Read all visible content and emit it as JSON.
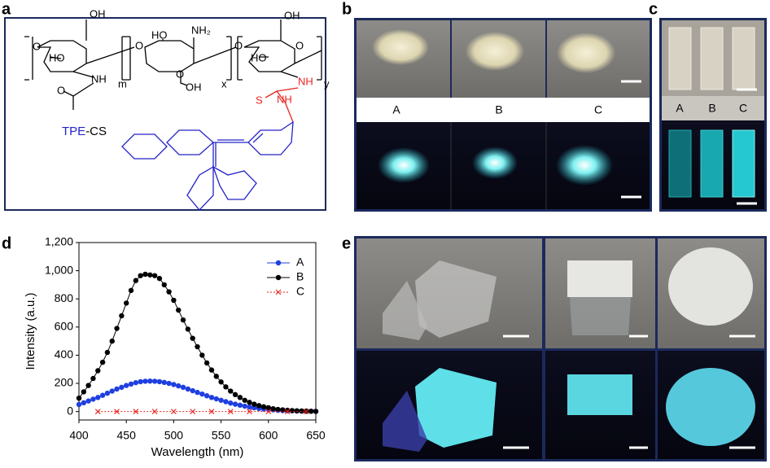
{
  "panel_labels": [
    "a",
    "b",
    "c",
    "d",
    "e"
  ],
  "structure": {
    "labels": [
      "OH",
      "O",
      "HO",
      "NH",
      "O",
      "m",
      "O",
      "HO",
      "NH₂",
      "O",
      "OH",
      "x",
      "O",
      "OH",
      "HO",
      "O",
      "NH",
      "y",
      "S",
      "NH"
    ],
    "tpe": "TPE",
    "cs": "-CS"
  },
  "panel_b": {
    "labels": [
      "A",
      "B",
      "C"
    ]
  },
  "panel_c": {
    "labels": [
      "A",
      "B",
      "C"
    ]
  },
  "chart_data": {
    "type": "line",
    "xlabel": "Wavelength (nm)",
    "ylabel": "Intensity (a.u.)",
    "xlim": [
      400,
      650
    ],
    "xticks": [
      400,
      450,
      500,
      550,
      600,
      650
    ],
    "ylim": [
      -60,
      1200
    ],
    "yticks": [
      0,
      200,
      400,
      600,
      800,
      {
        "value": 1000,
        "label": "1,000"
      },
      {
        "value": 1200,
        "label": "1,200"
      }
    ],
    "legend": "upper right",
    "x": [
      400,
      405,
      410,
      415,
      420,
      425,
      430,
      435,
      440,
      445,
      450,
      455,
      460,
      465,
      470,
      475,
      480,
      485,
      490,
      495,
      500,
      505,
      510,
      515,
      520,
      525,
      530,
      535,
      540,
      545,
      550,
      555,
      560,
      565,
      570,
      575,
      580,
      585,
      590,
      595,
      600,
      605,
      610,
      615,
      620,
      625,
      630,
      635,
      640,
      645,
      650
    ],
    "series": [
      {
        "name": "A",
        "color": "#1f3fe0",
        "marker": "circle",
        "values": [
          50,
          62,
          75,
          88,
          100,
          115,
          130,
          145,
          160,
          172,
          185,
          195,
          205,
          212,
          215,
          216,
          215,
          212,
          207,
          200,
          192,
          182,
          172,
          160,
          148,
          136,
          124,
          112,
          100,
          90,
          80,
          70,
          60,
          52,
          45,
          38,
          32,
          27,
          22,
          18,
          15,
          12,
          9,
          7,
          6,
          5,
          4,
          3,
          2,
          2,
          1
        ]
      },
      {
        "name": "B",
        "color": "#000000",
        "marker": "circle",
        "values": [
          95,
          140,
          185,
          235,
          290,
          350,
          420,
          500,
          590,
          680,
          770,
          860,
          930,
          965,
          975,
          970,
          965,
          945,
          900,
          850,
          790,
          720,
          650,
          585,
          520,
          460,
          400,
          345,
          295,
          250,
          210,
          175,
          145,
          120,
          100,
          80,
          65,
          52,
          42,
          34,
          27,
          20,
          15,
          12,
          9,
          7,
          5,
          4,
          3,
          2,
          1
        ]
      },
      {
        "name": "C",
        "color": "#e8231f",
        "marker": "x",
        "dash": true,
        "x": [
          420,
          440,
          460,
          480,
          500,
          520,
          540,
          560,
          580,
          600,
          620,
          640
        ],
        "values": [
          0,
          0,
          0,
          0,
          0,
          0,
          0,
          0,
          0,
          0,
          0,
          0
        ]
      }
    ]
  }
}
